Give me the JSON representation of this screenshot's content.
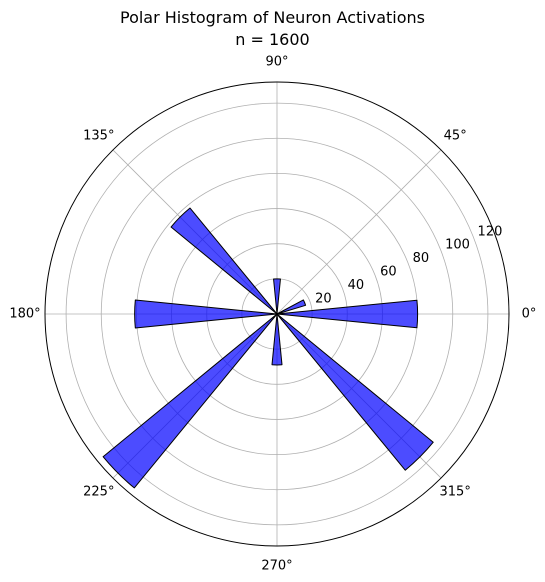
{
  "chart_data": {
    "type": "bar",
    "polar": true,
    "title": "Polar Histogram of Neuron Activations",
    "subtitle": "n = 1600",
    "angle_ticks_deg": [
      0,
      45,
      90,
      135,
      180,
      225,
      270,
      315
    ],
    "angle_tick_labels": [
      "0°",
      "45°",
      "90°",
      "135°",
      "180°",
      "225°",
      "270°",
      "315°"
    ],
    "radial_ticks": [
      20,
      40,
      60,
      80,
      100,
      120
    ],
    "radial_tick_labels": [
      "20",
      "40",
      "60",
      "80",
      "100",
      "120"
    ],
    "r_max": 132,
    "radial_label_angle_deg": 22.5,
    "grid": true,
    "bar_color": "#0000ff",
    "bar_opacity": 0.7,
    "bar_edge_color": "#000000",
    "bin_width_deg": 11.25,
    "bins": [
      {
        "center_deg": 0,
        "value": 80
      },
      {
        "center_deg": 22.5,
        "value": 17
      },
      {
        "center_deg": 90,
        "value": 20
      },
      {
        "center_deg": 135,
        "value": 78
      },
      {
        "center_deg": 180,
        "value": 81
      },
      {
        "center_deg": 225,
        "value": 128
      },
      {
        "center_deg": 270,
        "value": 29
      },
      {
        "center_deg": 315,
        "value": 115
      }
    ]
  }
}
